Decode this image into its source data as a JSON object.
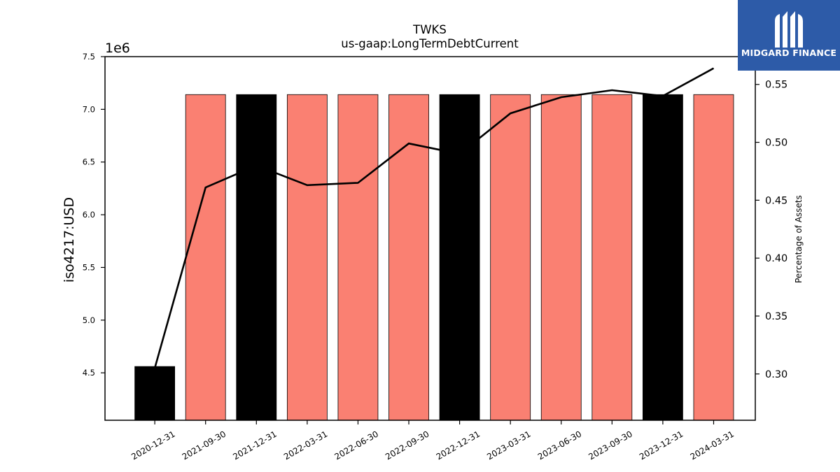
{
  "logo": {
    "text": "MIDGARD FINANCE",
    "background": "#2d5ba8"
  },
  "chart_data": {
    "type": "bar",
    "title": "TWKS",
    "subtitle": "us-gaap:LongTermDebtCurrent",
    "ylabel": "iso4217:USD",
    "y_offset_label": "1e6",
    "y2label": "Percentage of Assets",
    "categories": [
      "2020-12-31",
      "2021-09-30",
      "2021-12-31",
      "2022-03-31",
      "2022-06-30",
      "2022-09-30",
      "2022-12-31",
      "2023-03-31",
      "2023-06-30",
      "2023-09-30",
      "2023-12-31",
      "2024-03-31"
    ],
    "bar_values": [
      4.56,
      7.14,
      7.14,
      7.14,
      7.14,
      7.14,
      7.14,
      7.14,
      7.14,
      7.14,
      7.14,
      7.14
    ],
    "bar_colors": [
      "#000000",
      "#fa8072",
      "#000000",
      "#fa8072",
      "#fa8072",
      "#fa8072",
      "#000000",
      "#fa8072",
      "#fa8072",
      "#fa8072",
      "#000000",
      "#fa8072"
    ],
    "line_values": [
      0.305,
      0.461,
      0.48,
      0.463,
      0.465,
      0.499,
      0.49,
      0.525,
      0.539,
      0.545,
      0.54,
      0.564
    ],
    "ylim": [
      4.05,
      7.5
    ],
    "yticks": [
      4.5,
      5.0,
      5.5,
      6.0,
      6.5,
      7.0,
      7.5
    ],
    "yticklabels": [
      "4.5",
      "5.0",
      "5.5",
      "6.0",
      "6.5",
      "7.0",
      "7.5"
    ],
    "y2lim": [
      0.26,
      0.574
    ],
    "y2ticks": [
      0.3,
      0.35,
      0.4,
      0.45,
      0.5,
      0.55
    ],
    "y2ticklabels": [
      "0.30",
      "0.35",
      "0.40",
      "0.45",
      "0.50",
      "0.55"
    ],
    "line_color": "#000000",
    "grid": false
  }
}
